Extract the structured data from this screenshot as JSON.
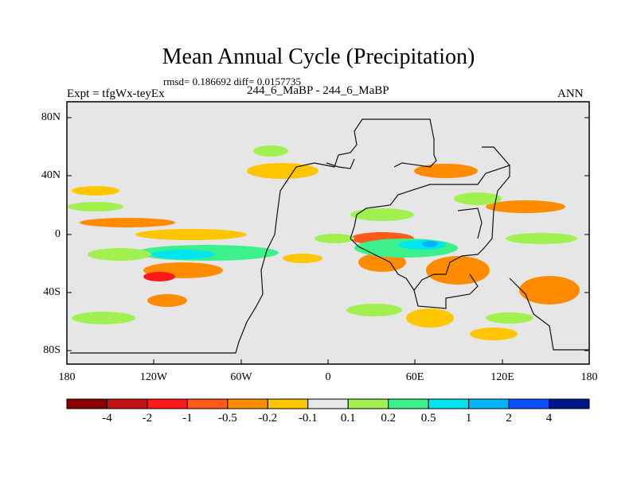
{
  "title": "Mean Annual Cycle (Precipitation)",
  "stats": "rmsd= 0.186692 diff= 0.0157735",
  "experiment": "Expt = tfgWx-teyEx",
  "case": "244_6_MaBP - 244_6_MaBP",
  "season": "ANN",
  "y_ticks": [
    "80N",
    "40N",
    "0",
    "40S",
    "80S"
  ],
  "x_ticks": [
    "180",
    "120W",
    "60W",
    "0",
    "60E",
    "120E",
    "180"
  ],
  "colorbar": {
    "colors": [
      "#8b0000",
      "#c41010",
      "#ff1a1a",
      "#ff5a1a",
      "#ff8c00",
      "#ffc600",
      "#e8e8e8",
      "#a0f050",
      "#3cf08c",
      "#00e6f0",
      "#00b4ff",
      "#0a50ff",
      "#00148c"
    ],
    "labels": [
      "-4",
      "-2",
      "-1",
      "-0.5",
      "-0.2",
      "-0.1",
      "0.1",
      "0.2",
      "0.5",
      "1",
      "2",
      "4"
    ]
  },
  "map_colors": {
    "background": "#e6e6e6",
    "frame": "#000000",
    "coast": "#111111"
  }
}
